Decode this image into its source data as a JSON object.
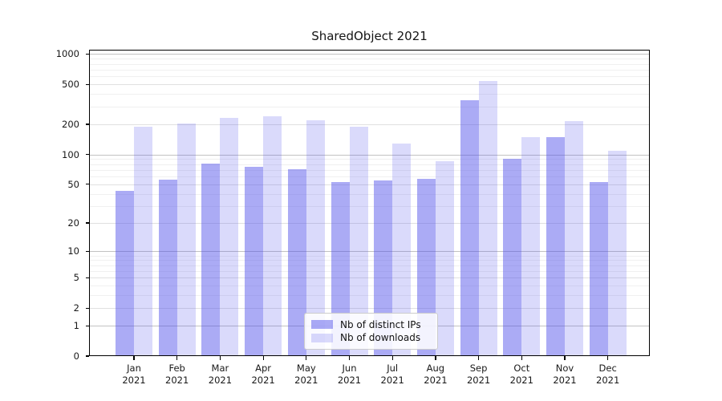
{
  "chart_data": {
    "type": "bar",
    "title": "SharedObject 2021",
    "categories": [
      "Jan",
      "Feb",
      "Mar",
      "Apr",
      "May",
      "Jun",
      "Jul",
      "Aug",
      "Sep",
      "Oct",
      "Nov",
      "Dec"
    ],
    "category_year": "2021",
    "series": [
      {
        "name": "Nb of distinct IPs",
        "color": "rgba(80,80,235,0.48)",
        "approx_hex": "#a8a8f5",
        "values": [
          43,
          56,
          81,
          75,
          71,
          53,
          55,
          57,
          350,
          90,
          150,
          53
        ]
      },
      {
        "name": "Nb of downloads",
        "color": "rgba(80,80,235,0.21)",
        "approx_hex": "#d8d8f8",
        "values": [
          189,
          204,
          232,
          240,
          219,
          188,
          128,
          85,
          540,
          148,
          215,
          109
        ]
      }
    ],
    "y_ticks": [
      0,
      1,
      2,
      5,
      10,
      20,
      50,
      100,
      200,
      500,
      1000
    ],
    "y_scale": "log1p",
    "ylim": [
      0,
      1040
    ],
    "xlabel": "",
    "ylabel": "",
    "grid": true,
    "legend_position": "lower-center"
  }
}
